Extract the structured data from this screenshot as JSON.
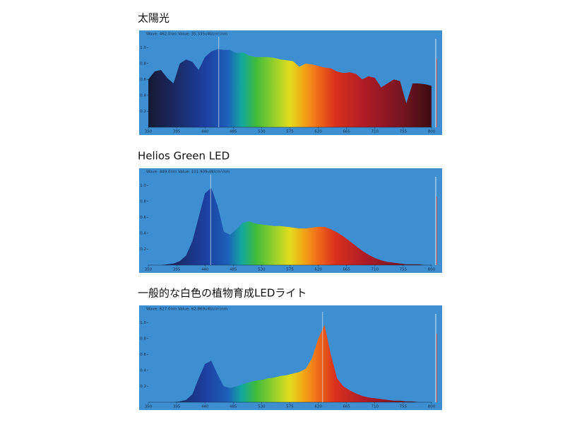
{
  "chart_data": [
    {
      "type": "area",
      "title": "太陽光",
      "info": "Wave: 462.0nm  Value: 35.335uW/cm²/nm",
      "cursor": 462,
      "x": [
        350,
        360,
        370,
        380,
        390,
        400,
        410,
        420,
        430,
        440,
        450,
        460,
        470,
        480,
        490,
        500,
        510,
        520,
        530,
        540,
        550,
        560,
        570,
        580,
        590,
        600,
        610,
        620,
        630,
        640,
        650,
        660,
        670,
        680,
        690,
        700,
        710,
        720,
        730,
        740,
        750,
        760,
        770,
        780,
        790,
        800
      ],
      "values": [
        0.6,
        0.7,
        0.72,
        0.62,
        0.55,
        0.8,
        0.85,
        0.82,
        0.72,
        0.88,
        0.95,
        0.98,
        0.97,
        0.97,
        0.93,
        0.94,
        0.9,
        0.88,
        0.88,
        0.88,
        0.87,
        0.85,
        0.84,
        0.83,
        0.76,
        0.8,
        0.79,
        0.77,
        0.75,
        0.74,
        0.7,
        0.68,
        0.69,
        0.67,
        0.6,
        0.64,
        0.62,
        0.5,
        0.55,
        0.6,
        0.58,
        0.3,
        0.55,
        0.55,
        0.54,
        0.52
      ],
      "xlim": [
        350,
        800
      ],
      "xticks": [
        350,
        395,
        440,
        485,
        530,
        575,
        620,
        665,
        710,
        755,
        800
      ],
      "ylim": [
        0,
        1.1
      ],
      "yticks": [
        0.2,
        0.4,
        0.6,
        0.8,
        {
          "value": 1,
          "label": "1.0"
        }
      ]
    },
    {
      "type": "area",
      "title": "Helios Green LED",
      "info": "Wave: 449.0nm  Value: 101.909uW/cm²/nm",
      "cursor": 449,
      "x": [
        350,
        360,
        370,
        380,
        390,
        400,
        410,
        420,
        430,
        440,
        450,
        460,
        470,
        480,
        490,
        500,
        510,
        520,
        530,
        540,
        550,
        560,
        570,
        580,
        590,
        600,
        610,
        620,
        630,
        640,
        650,
        660,
        670,
        680,
        690,
        700,
        710,
        720,
        730,
        740,
        750,
        760,
        770,
        780,
        790,
        800
      ],
      "values": [
        0,
        0,
        0,
        0.01,
        0.02,
        0.05,
        0.12,
        0.3,
        0.6,
        0.9,
        0.97,
        0.75,
        0.42,
        0.38,
        0.45,
        0.53,
        0.55,
        0.52,
        0.51,
        0.5,
        0.49,
        0.49,
        0.48,
        0.47,
        0.46,
        0.46,
        0.47,
        0.48,
        0.48,
        0.45,
        0.41,
        0.36,
        0.3,
        0.24,
        0.18,
        0.13,
        0.09,
        0.06,
        0.04,
        0.03,
        0.02,
        0.01,
        0.01,
        0.01,
        0,
        0
      ],
      "xlim": [
        350,
        800
      ],
      "xticks": [
        350,
        395,
        440,
        485,
        530,
        575,
        620,
        665,
        710,
        755,
        800
      ],
      "ylim": [
        0,
        1.1
      ],
      "yticks": [
        0.2,
        0.4,
        0.6,
        0.8,
        {
          "value": 1,
          "label": "1.0"
        }
      ]
    },
    {
      "type": "area",
      "title": "一般的な白色の植物育成LEDライト",
      "info": "Wave: 627.0nm  Value: 62.869uW/cm²/nm",
      "cursor": 627,
      "x": [
        350,
        360,
        370,
        380,
        390,
        400,
        410,
        420,
        430,
        440,
        450,
        460,
        470,
        480,
        490,
        500,
        510,
        520,
        530,
        540,
        550,
        560,
        570,
        580,
        590,
        600,
        610,
        620,
        630,
        640,
        650,
        660,
        670,
        680,
        690,
        700,
        710,
        720,
        730,
        740,
        750,
        760,
        770,
        780,
        790,
        800
      ],
      "values": [
        0,
        0,
        0,
        0,
        0,
        0.01,
        0.03,
        0.1,
        0.3,
        0.48,
        0.52,
        0.35,
        0.2,
        0.18,
        0.2,
        0.23,
        0.25,
        0.27,
        0.28,
        0.3,
        0.31,
        0.33,
        0.34,
        0.36,
        0.38,
        0.42,
        0.55,
        0.8,
        0.97,
        0.6,
        0.3,
        0.2,
        0.15,
        0.11,
        0.08,
        0.06,
        0.05,
        0.04,
        0.03,
        0.02,
        0.02,
        0.01,
        0.01,
        0,
        0,
        0
      ],
      "xlim": [
        350,
        800
      ],
      "xticks": [
        350,
        395,
        440,
        485,
        530,
        575,
        620,
        665,
        710,
        755,
        800
      ],
      "ylim": [
        0,
        1.1
      ],
      "yticks": [
        0.2,
        0.4,
        0.6,
        0.8,
        {
          "value": 1,
          "label": "1.0"
        }
      ]
    }
  ]
}
